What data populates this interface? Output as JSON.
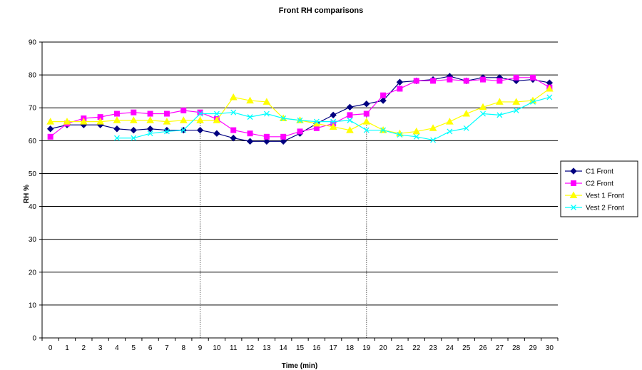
{
  "chart_data": {
    "type": "line",
    "title": "Front RH comparisons",
    "xlabel": "Time (min)",
    "ylabel": "RH %",
    "x": [
      0,
      1,
      2,
      3,
      4,
      5,
      6,
      7,
      8,
      9,
      10,
      11,
      12,
      13,
      14,
      15,
      16,
      17,
      18,
      19,
      20,
      21,
      22,
      23,
      24,
      25,
      26,
      27,
      28,
      29,
      30
    ],
    "xlim": [
      0,
      30
    ],
    "ylim": [
      0,
      90
    ],
    "yticks": [
      0,
      10,
      20,
      30,
      40,
      50,
      60,
      70,
      80,
      90
    ],
    "grid": "horizontal",
    "legend": "right",
    "reference_lines_x": [
      9,
      19
    ],
    "series": [
      {
        "name": "C1 Front",
        "color": "#000080",
        "marker": "diamond",
        "values": [
          63.6,
          64.8,
          64.8,
          64.8,
          63.6,
          63.2,
          63.6,
          63.2,
          63.2,
          63.2,
          62.2,
          60.8,
          59.8,
          59.8,
          59.8,
          62.2,
          65.2,
          67.8,
          70.2,
          71.2,
          72.2,
          77.8,
          78.2,
          78.6,
          79.6,
          78.2,
          79.2,
          79.2,
          78.2,
          78.6,
          77.6
        ]
      },
      {
        "name": "C2 Front",
        "color": "#FF00FF",
        "marker": "square",
        "values": [
          61.2,
          65.2,
          66.8,
          67.2,
          68.2,
          68.6,
          68.2,
          68.2,
          69.2,
          68.6,
          66.6,
          63.2,
          62.2,
          61.2,
          61.2,
          62.8,
          63.8,
          65.2,
          67.8,
          68.2,
          73.8,
          75.8,
          78.2,
          78.2,
          78.6,
          78.2,
          78.6,
          78.2,
          79.2,
          79.2,
          76.2
        ]
      },
      {
        "name": "Vest 1 Front",
        "color": "#FFFF00",
        "marker": "triangle",
        "values": [
          65.8,
          65.8,
          65.8,
          65.8,
          66.2,
          66.2,
          66.2,
          65.8,
          66.2,
          66.2,
          66.2,
          73.2,
          72.2,
          71.8,
          66.8,
          66.2,
          65.2,
          64.2,
          63.2,
          65.8,
          63.2,
          62.2,
          62.8,
          63.8,
          65.8,
          68.2,
          70.2,
          71.8,
          71.8,
          72.2,
          75.8
        ]
      },
      {
        "name": "Vest 2 Front",
        "color": "#00FFFF",
        "marker": "x",
        "values": [
          null,
          null,
          null,
          null,
          60.8,
          60.8,
          62.2,
          62.8,
          63.2,
          68.2,
          68.2,
          68.6,
          67.2,
          68.2,
          66.8,
          66.2,
          65.8,
          65.8,
          66.2,
          63.2,
          63.2,
          61.8,
          61.2,
          60.2,
          62.8,
          63.8,
          68.2,
          67.8,
          69.2,
          71.8,
          73.2
        ]
      }
    ]
  }
}
